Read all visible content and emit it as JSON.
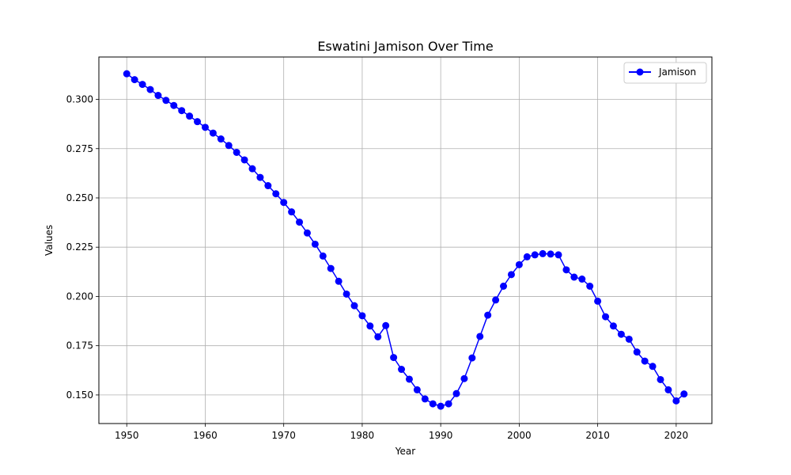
{
  "chart_data": {
    "type": "line",
    "title": "Eswatini Jamison Over Time",
    "xlabel": "Year",
    "ylabel": "Values",
    "xlim": [
      1946.45,
      2024.55
    ],
    "ylim": [
      0.1355,
      0.3215
    ],
    "xticks": [
      1950,
      1960,
      1970,
      1980,
      1990,
      2000,
      2010,
      2020
    ],
    "yticks": [
      0.15,
      0.175,
      0.2,
      0.225,
      0.25,
      0.275,
      0.3
    ],
    "grid": true,
    "legend_position": "top-right",
    "series": [
      {
        "name": "Jamison",
        "color": "#0000ff",
        "marker": "circle",
        "x": [
          1950,
          1951,
          1952,
          1953,
          1954,
          1955,
          1956,
          1957,
          1958,
          1959,
          1960,
          1961,
          1962,
          1963,
          1964,
          1965,
          1966,
          1967,
          1968,
          1969,
          1970,
          1971,
          1972,
          1973,
          1974,
          1975,
          1976,
          1977,
          1978,
          1979,
          1980,
          1981,
          1982,
          1983,
          1984,
          1985,
          1986,
          1987,
          1988,
          1989,
          1990,
          1991,
          1992,
          1993,
          1994,
          1995,
          1996,
          1997,
          1998,
          1999,
          2000,
          2001,
          2002,
          2003,
          2004,
          2005,
          2006,
          2007,
          2008,
          2009,
          2010,
          2011,
          2012,
          2013,
          2014,
          2015,
          2016,
          2017,
          2018,
          2019,
          2020,
          2021
        ],
        "values": [
          0.313,
          0.31,
          0.3076,
          0.305,
          0.302,
          0.2995,
          0.2969,
          0.2943,
          0.2915,
          0.2887,
          0.2858,
          0.2829,
          0.2799,
          0.2766,
          0.2731,
          0.2693,
          0.2648,
          0.2604,
          0.2562,
          0.2521,
          0.2477,
          0.2429,
          0.2377,
          0.2322,
          0.2265,
          0.2205,
          0.2142,
          0.2077,
          0.2012,
          0.1953,
          0.1902,
          0.185,
          0.1795,
          0.1852,
          0.169,
          0.163,
          0.158,
          0.1526,
          0.148,
          0.1455,
          0.1443,
          0.1455,
          0.1507,
          0.1583,
          0.1688,
          0.1797,
          0.1905,
          0.1982,
          0.2052,
          0.2111,
          0.2161,
          0.2201,
          0.2211,
          0.2217,
          0.2215,
          0.2211,
          0.2135,
          0.2098,
          0.2088,
          0.2052,
          0.1976,
          0.1897,
          0.185,
          0.1808,
          0.1783,
          0.1718,
          0.1672,
          0.1645,
          0.1578,
          0.1526,
          0.147,
          0.1505
        ]
      }
    ]
  }
}
